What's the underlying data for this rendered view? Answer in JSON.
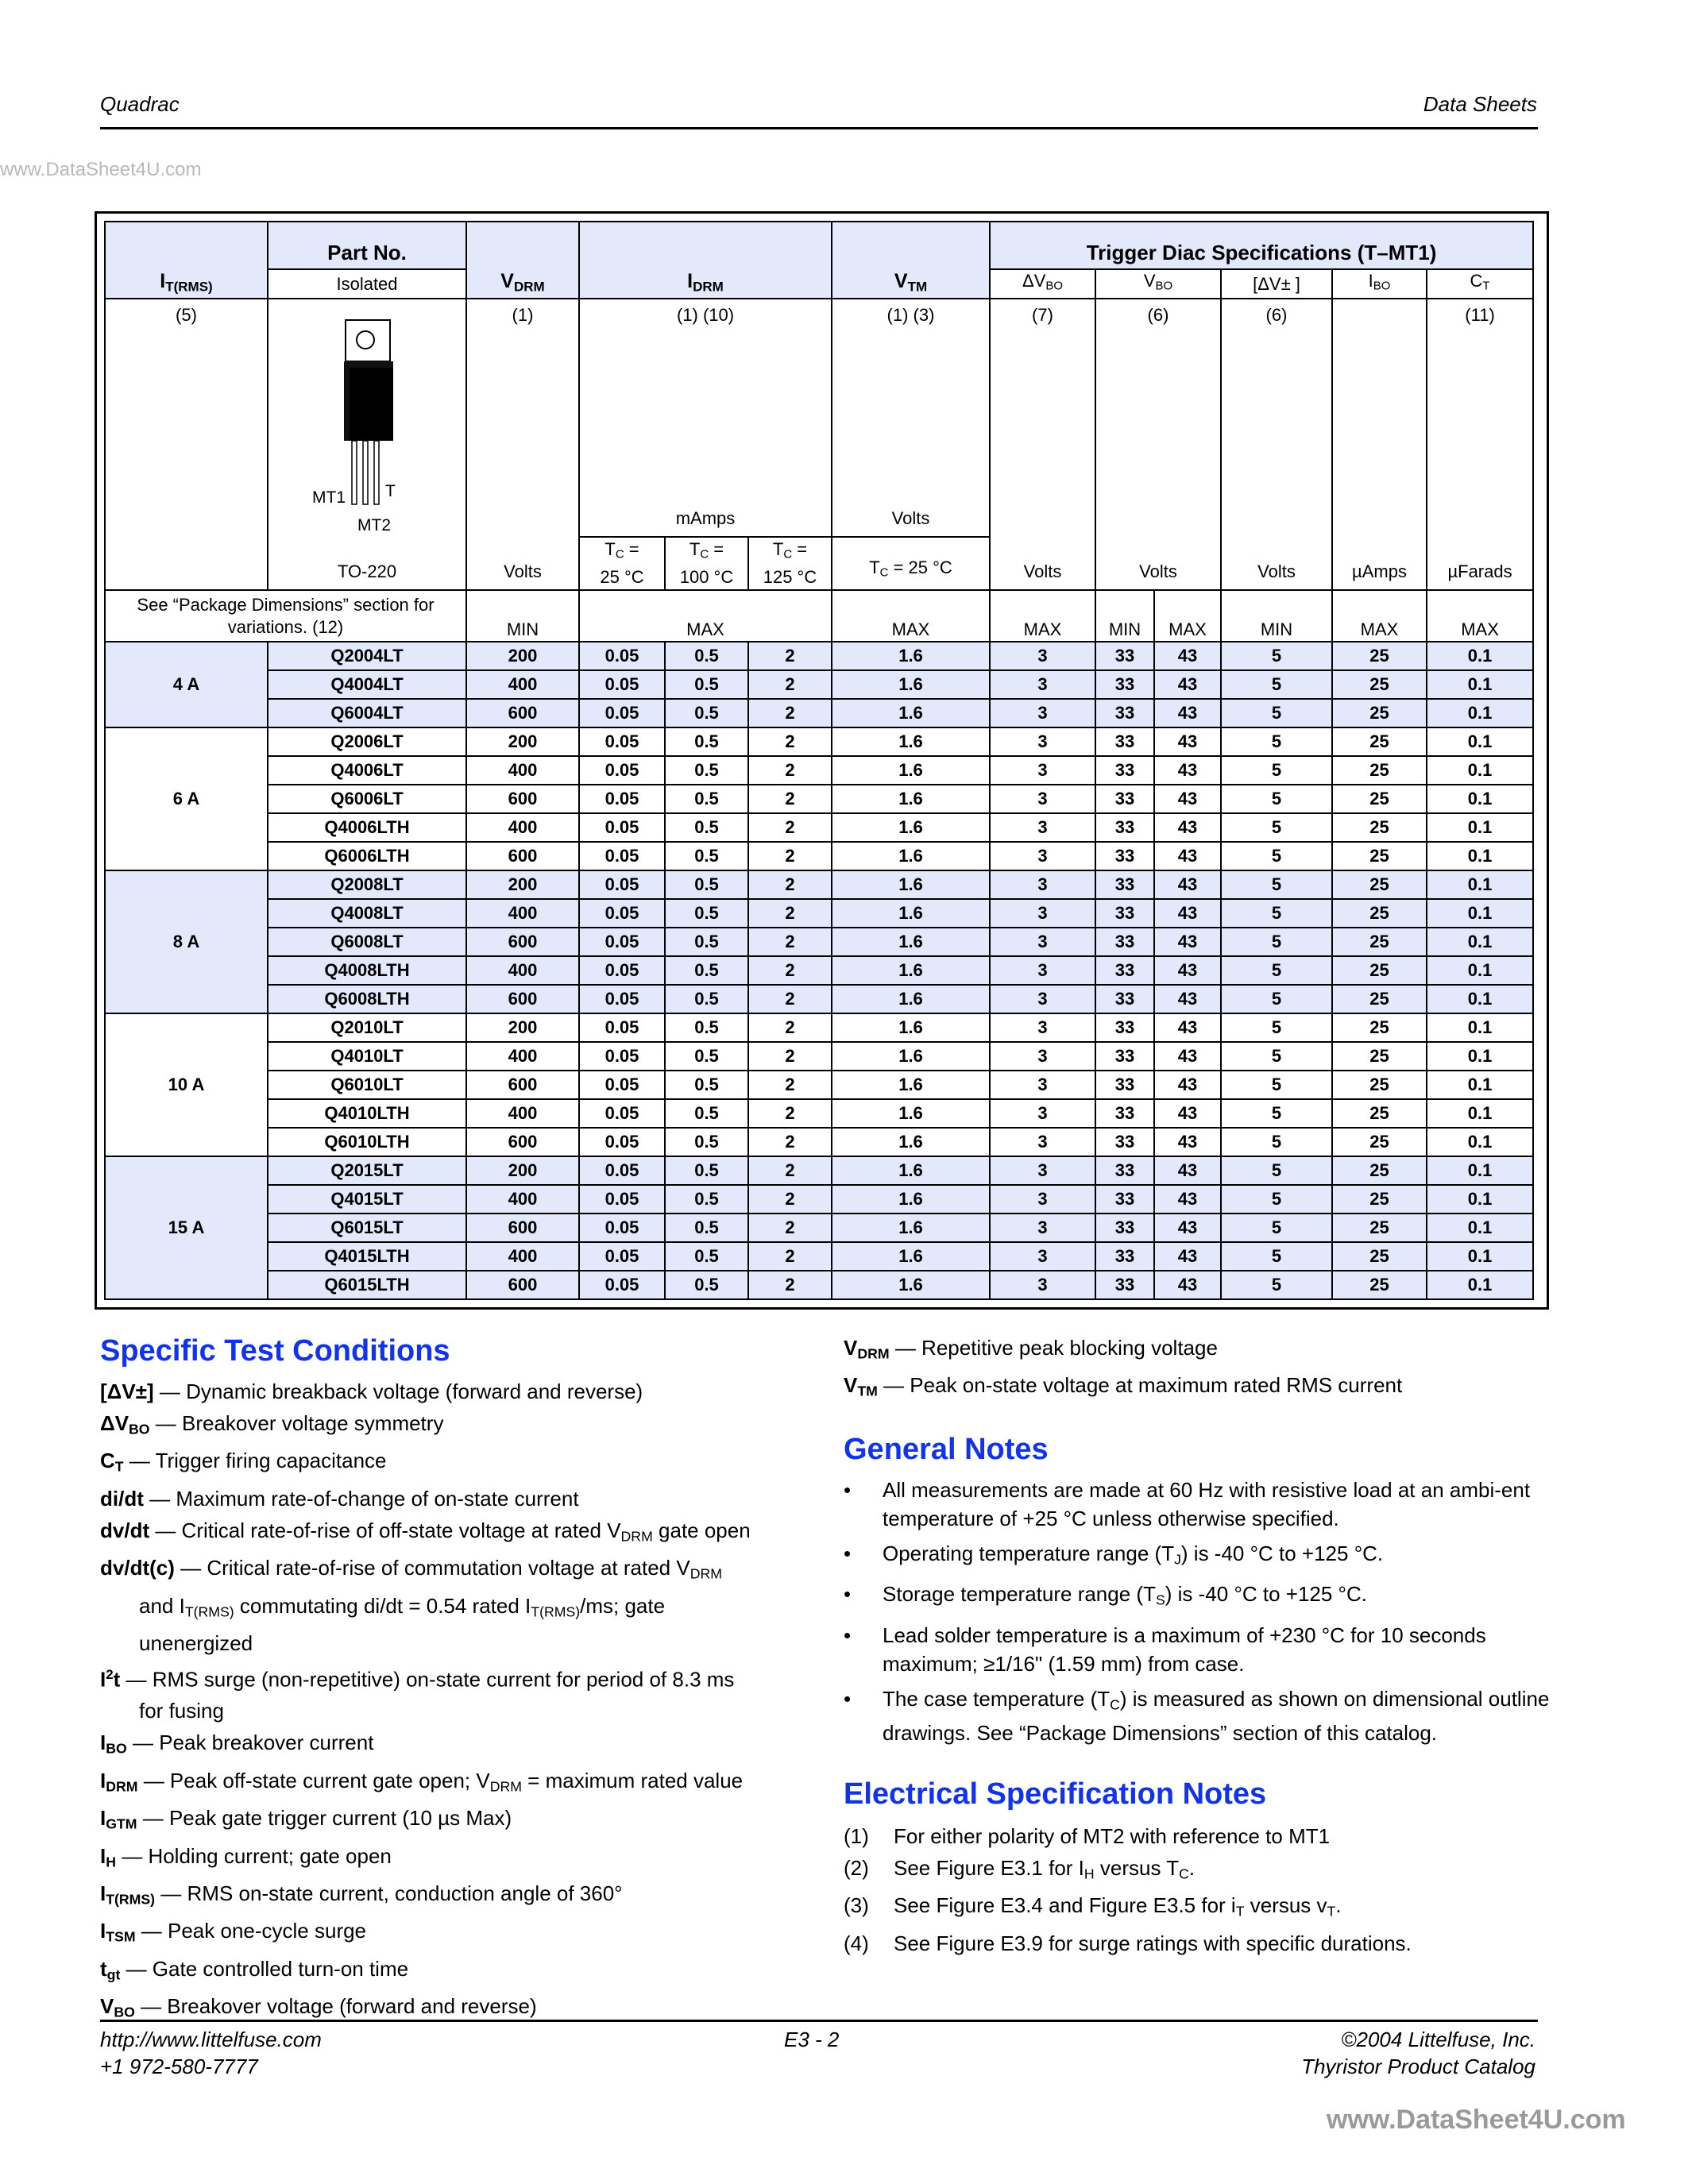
{
  "header": {
    "left": "Quadrac",
    "right": "Data Sheets"
  },
  "table": {
    "headers": {
      "it": {
        "sym": "I",
        "sub": "T(RMS)"
      },
      "part_no": "Part No.",
      "isolated": "Isolated",
      "vdrm": {
        "sym": "V",
        "sub": "DRM"
      },
      "idrm": {
        "sym": "I",
        "sub": "DRM"
      },
      "vtm": {
        "sym": "V",
        "sub": "TM"
      },
      "trigger": "Trigger Diac Specifications (T–MT1)",
      "dvbo": {
        "sym": "ΔV",
        "sub": "BO"
      },
      "vbo": {
        "sym": "V",
        "sub": "BO"
      },
      "dvpm": "[ΔV± ]",
      "ibo": {
        "sym": "I",
        "sub": "BO"
      },
      "ct": {
        "sym": "C",
        "sub": "T"
      }
    },
    "notes": {
      "it": "(5)",
      "vdrm": "(1)",
      "idrm": "(1) (10)",
      "vtm": "(1) (3)",
      "dvbo": "(7)",
      "vbo": "(6)",
      "dvpm": "(6)",
      "ct": "(11)"
    },
    "package": {
      "name": "TO-220",
      "pin_mt1": "MT1",
      "pin_t": "T",
      "pin_mt2": "MT2"
    },
    "units": {
      "vdrm": "Volts",
      "idrm": "mAmps",
      "vtm": "Volts",
      "dvbo": "Volts",
      "vbo": "Volts",
      "dvpm": "Volts",
      "ibo": "µAmps",
      "ct": "µFarads"
    },
    "tc": {
      "t1a": "T",
      "t1s": "C",
      "t1b": " =",
      "t1c": "25 °C",
      "t2c": "100 °C",
      "t3c": "125 °C",
      "vtm": " = 25 °C"
    },
    "package_note": "See “Package Dimensions” section for variations. (12)",
    "limits": {
      "vdrm": "MIN",
      "idrm": "MAX",
      "vtm": "MAX",
      "dvbo": "MAX",
      "vbo_min": "MIN",
      "vbo_max": "MAX",
      "dvpm": "MIN",
      "ibo": "MAX",
      "ct": "MAX"
    },
    "groups": [
      {
        "label": "4 A",
        "shaded": true,
        "rows": [
          [
            "Q2004LT",
            "200",
            "0.05",
            "0.5",
            "2",
            "1.6",
            "3",
            "33",
            "43",
            "5",
            "25",
            "0.1"
          ],
          [
            "Q4004LT",
            "400",
            "0.05",
            "0.5",
            "2",
            "1.6",
            "3",
            "33",
            "43",
            "5",
            "25",
            "0.1"
          ],
          [
            "Q6004LT",
            "600",
            "0.05",
            "0.5",
            "2",
            "1.6",
            "3",
            "33",
            "43",
            "5",
            "25",
            "0.1"
          ]
        ]
      },
      {
        "label": "6 A",
        "shaded": false,
        "rows": [
          [
            "Q2006LT",
            "200",
            "0.05",
            "0.5",
            "2",
            "1.6",
            "3",
            "33",
            "43",
            "5",
            "25",
            "0.1"
          ],
          [
            "Q4006LT",
            "400",
            "0.05",
            "0.5",
            "2",
            "1.6",
            "3",
            "33",
            "43",
            "5",
            "25",
            "0.1"
          ],
          [
            "Q6006LT",
            "600",
            "0.05",
            "0.5",
            "2",
            "1.6",
            "3",
            "33",
            "43",
            "5",
            "25",
            "0.1"
          ],
          [
            "Q4006LTH",
            "400",
            "0.05",
            "0.5",
            "2",
            "1.6",
            "3",
            "33",
            "43",
            "5",
            "25",
            "0.1"
          ],
          [
            "Q6006LTH",
            "600",
            "0.05",
            "0.5",
            "2",
            "1.6",
            "3",
            "33",
            "43",
            "5",
            "25",
            "0.1"
          ]
        ]
      },
      {
        "label": "8 A",
        "shaded": true,
        "rows": [
          [
            "Q2008LT",
            "200",
            "0.05",
            "0.5",
            "2",
            "1.6",
            "3",
            "33",
            "43",
            "5",
            "25",
            "0.1"
          ],
          [
            "Q4008LT",
            "400",
            "0.05",
            "0.5",
            "2",
            "1.6",
            "3",
            "33",
            "43",
            "5",
            "25",
            "0.1"
          ],
          [
            "Q6008LT",
            "600",
            "0.05",
            "0.5",
            "2",
            "1.6",
            "3",
            "33",
            "43",
            "5",
            "25",
            "0.1"
          ],
          [
            "Q4008LTH",
            "400",
            "0.05",
            "0.5",
            "2",
            "1.6",
            "3",
            "33",
            "43",
            "5",
            "25",
            "0.1"
          ],
          [
            "Q6008LTH",
            "600",
            "0.05",
            "0.5",
            "2",
            "1.6",
            "3",
            "33",
            "43",
            "5",
            "25",
            "0.1"
          ]
        ]
      },
      {
        "label": "10 A",
        "shaded": false,
        "rows": [
          [
            "Q2010LT",
            "200",
            "0.05",
            "0.5",
            "2",
            "1.6",
            "3",
            "33",
            "43",
            "5",
            "25",
            "0.1"
          ],
          [
            "Q4010LT",
            "400",
            "0.05",
            "0.5",
            "2",
            "1.6",
            "3",
            "33",
            "43",
            "5",
            "25",
            "0.1"
          ],
          [
            "Q6010LT",
            "600",
            "0.05",
            "0.5",
            "2",
            "1.6",
            "3",
            "33",
            "43",
            "5",
            "25",
            "0.1"
          ],
          [
            "Q4010LTH",
            "400",
            "0.05",
            "0.5",
            "2",
            "1.6",
            "3",
            "33",
            "43",
            "5",
            "25",
            "0.1"
          ],
          [
            "Q6010LTH",
            "600",
            "0.05",
            "0.5",
            "2",
            "1.6",
            "3",
            "33",
            "43",
            "5",
            "25",
            "0.1"
          ]
        ]
      },
      {
        "label": "15 A",
        "shaded": true,
        "rows": [
          [
            "Q2015LT",
            "200",
            "0.05",
            "0.5",
            "2",
            "1.6",
            "3",
            "33",
            "43",
            "5",
            "25",
            "0.1"
          ],
          [
            "Q4015LT",
            "400",
            "0.05",
            "0.5",
            "2",
            "1.6",
            "3",
            "33",
            "43",
            "5",
            "25",
            "0.1"
          ],
          [
            "Q6015LT",
            "600",
            "0.05",
            "0.5",
            "2",
            "1.6",
            "3",
            "33",
            "43",
            "5",
            "25",
            "0.1"
          ],
          [
            "Q4015LTH",
            "400",
            "0.05",
            "0.5",
            "2",
            "1.6",
            "3",
            "33",
            "43",
            "5",
            "25",
            "0.1"
          ],
          [
            "Q6015LTH",
            "600",
            "0.05",
            "0.5",
            "2",
            "1.6",
            "3",
            "33",
            "43",
            "5",
            "25",
            "0.1"
          ]
        ]
      }
    ],
    "shade_color": "#e3e9fb"
  },
  "test_conditions": {
    "title": "Specific Test Conditions",
    "items": [
      [
        [
          "b",
          "[ΔV±]"
        ],
        [
          "t",
          " — Dynamic breakback voltage (forward and reverse)"
        ]
      ],
      [
        [
          "b",
          "ΔV"
        ],
        [
          "bs",
          "BO"
        ],
        [
          "t",
          " — Breakover voltage symmetry"
        ]
      ],
      [
        [
          "b",
          "C"
        ],
        [
          "bs",
          "T"
        ],
        [
          "t",
          " — Trigger firing capacitance"
        ]
      ],
      [
        [
          "b",
          "di/dt"
        ],
        [
          "t",
          " — Maximum rate-of-change of on-state current"
        ]
      ],
      [
        [
          "b",
          "dv/dt"
        ],
        [
          "t",
          " — Critical rate-of-rise of off-state voltage at rated V"
        ],
        [
          "s",
          "DRM"
        ],
        [
          "t",
          " gate open"
        ]
      ],
      [
        [
          "b",
          "dv/dt(c)"
        ],
        [
          "t",
          " — Critical rate-of-rise of commutation voltage at rated V"
        ],
        [
          "s",
          "DRM"
        ],
        [
          "br",
          ""
        ],
        [
          "t",
          "and I"
        ],
        [
          "s",
          "T(RMS)"
        ],
        [
          "t",
          " commutating di/dt = 0.54 rated I"
        ],
        [
          "s",
          "T(RMS)"
        ],
        [
          "t",
          "/ms; gate"
        ],
        [
          "br",
          ""
        ],
        [
          "t",
          "unenergized"
        ]
      ],
      [
        [
          "b",
          "I"
        ],
        [
          "bsup",
          "2"
        ],
        [
          "b",
          "t"
        ],
        [
          "t",
          " — RMS surge (non-repetitive) on-state current for period of 8.3 ms"
        ],
        [
          "br",
          ""
        ],
        [
          "t",
          "for fusing"
        ]
      ],
      [
        [
          "b",
          "I"
        ],
        [
          "bs",
          "BO"
        ],
        [
          "t",
          " — Peak breakover current"
        ]
      ],
      [
        [
          "b",
          "I"
        ],
        [
          "bs",
          "DRM"
        ],
        [
          "t",
          " — Peak off-state current gate open; V"
        ],
        [
          "s",
          "DRM"
        ],
        [
          "t",
          " = maximum rated value"
        ]
      ],
      [
        [
          "b",
          "I"
        ],
        [
          "bs",
          "GTM"
        ],
        [
          "t",
          " — Peak gate trigger current (10 µs Max)"
        ]
      ],
      [
        [
          "b",
          "I"
        ],
        [
          "bs",
          "H"
        ],
        [
          "t",
          " — Holding current; gate open"
        ]
      ],
      [
        [
          "b",
          "I"
        ],
        [
          "bs",
          "T(RMS)"
        ],
        [
          "t",
          " — RMS on-state current, conduction angle of 360°"
        ]
      ],
      [
        [
          "b",
          "I"
        ],
        [
          "bs",
          "TSM"
        ],
        [
          "t",
          " — Peak one-cycle surge"
        ]
      ],
      [
        [
          "b",
          "t"
        ],
        [
          "bs",
          "gt"
        ],
        [
          "t",
          " — Gate controlled turn-on time"
        ]
      ],
      [
        [
          "b",
          "V"
        ],
        [
          "bs",
          "BO"
        ],
        [
          "t",
          " — Breakover voltage (forward and reverse)"
        ]
      ]
    ],
    "continued": [
      [
        [
          "b",
          "V"
        ],
        [
          "bs",
          "DRM"
        ],
        [
          "t",
          " — Repetitive peak blocking voltage"
        ]
      ],
      [
        [
          "b",
          "V"
        ],
        [
          "bs",
          "TM"
        ],
        [
          "t",
          " — Peak on-state voltage at maximum rated RMS current"
        ]
      ]
    ]
  },
  "general_notes": {
    "title": "General Notes",
    "bullet": "•",
    "items": [
      [
        [
          "t",
          "All measurements are made at 60 Hz with resistive load at an ambi-ent temperature of +25 °C unless otherwise specified."
        ]
      ],
      [
        [
          "t",
          "Operating temperature range (T"
        ],
        [
          "s",
          "J"
        ],
        [
          "t",
          ") is -40 °C to +125 °C."
        ]
      ],
      [
        [
          "t",
          "Storage temperature range (T"
        ],
        [
          "s",
          "S"
        ],
        [
          "t",
          ") is -40 °C to +125 °C."
        ]
      ],
      [
        [
          "t",
          "Lead solder temperature is a maximum of +230 °C for 10 seconds maximum; ≥1/16\" (1.59 mm) from case."
        ]
      ],
      [
        [
          "t",
          "The case temperature (T"
        ],
        [
          "s",
          "C"
        ],
        [
          "t",
          ") is measured as shown on dimensional outline drawings. See “Package Dimensions” section of this catalog."
        ]
      ]
    ]
  },
  "electrical_notes": {
    "title": "Electrical Specification Notes",
    "items": [
      {
        "num": "(1)",
        "text": [
          [
            "t",
            "For either polarity of MT2 with reference to MT1"
          ]
        ]
      },
      {
        "num": "(2)",
        "text": [
          [
            "t",
            "See Figure E3.1 for I"
          ],
          [
            "s",
            "H"
          ],
          [
            "t",
            " versus T"
          ],
          [
            "s",
            "C"
          ],
          [
            "t",
            "."
          ]
        ]
      },
      {
        "num": "(3)",
        "text": [
          [
            "t",
            "See Figure E3.4 and Figure E3.5 for i"
          ],
          [
            "s",
            "T"
          ],
          [
            "t",
            " versus v"
          ],
          [
            "s",
            "T"
          ],
          [
            "t",
            "."
          ]
        ]
      },
      {
        "num": "(4)",
        "text": [
          [
            "t",
            "See Figure E3.9 for surge ratings with specific durations."
          ]
        ]
      }
    ]
  },
  "footer": {
    "url": "http://www.littelfuse.com",
    "phone": "+1 972-580-7777",
    "page": "E3 - 2",
    "copyright": "©2004 Littelfuse, Inc.",
    "catalog": "Thyristor Product Catalog"
  },
  "watermarks": {
    "left": "www.DataSheet4U.com",
    "bottom": "www.DataSheet4U.com"
  },
  "colors": {
    "heading": "#1133ee",
    "shade": "#e3e9fb"
  }
}
